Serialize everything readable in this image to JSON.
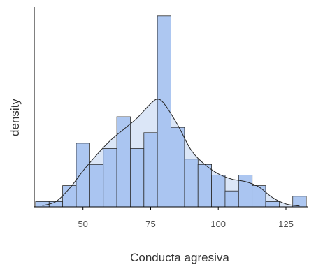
{
  "chart_data": {
    "type": "bar",
    "subtype": "histogram-with-density",
    "title": "",
    "xlabel": "Conducta agresiva",
    "ylabel": "density",
    "xlim": [
      32,
      133
    ],
    "ylim": [
      0,
      0.049
    ],
    "x_ticks": [
      50,
      75,
      100,
      125
    ],
    "y_ticks_shown": false,
    "grid": false,
    "bin_width": 5,
    "bins": [
      {
        "start": 32.5,
        "end": 37.5,
        "density": 0.0013
      },
      {
        "start": 37.5,
        "end": 42.5,
        "density": 0.0013
      },
      {
        "start": 42.5,
        "end": 47.5,
        "density": 0.0052
      },
      {
        "start": 47.5,
        "end": 52.5,
        "density": 0.0156
      },
      {
        "start": 52.5,
        "end": 57.5,
        "density": 0.0104
      },
      {
        "start": 57.5,
        "end": 62.5,
        "density": 0.0143
      },
      {
        "start": 62.5,
        "end": 67.5,
        "density": 0.0221
      },
      {
        "start": 67.5,
        "end": 72.5,
        "density": 0.0143
      },
      {
        "start": 72.5,
        "end": 77.5,
        "density": 0.0182
      },
      {
        "start": 77.5,
        "end": 82.5,
        "density": 0.0468
      },
      {
        "start": 82.5,
        "end": 87.5,
        "density": 0.0195
      },
      {
        "start": 87.5,
        "end": 92.5,
        "density": 0.0117
      },
      {
        "start": 92.5,
        "end": 97.5,
        "density": 0.0104
      },
      {
        "start": 97.5,
        "end": 102.5,
        "density": 0.0078
      },
      {
        "start": 102.5,
        "end": 107.5,
        "density": 0.0039
      },
      {
        "start": 107.5,
        "end": 112.5,
        "density": 0.0078
      },
      {
        "start": 112.5,
        "end": 117.5,
        "density": 0.0052
      },
      {
        "start": 117.5,
        "end": 122.5,
        "density": 0.0013
      },
      {
        "start": 127.5,
        "end": 132.5,
        "density": 0.0026
      }
    ],
    "density_curve": {
      "x": [
        35,
        40,
        45,
        50,
        55,
        60,
        65,
        70,
        75,
        77.5,
        80,
        85,
        90,
        95,
        100,
        105,
        110,
        115,
        120,
        125,
        130
      ],
      "y": [
        0.0003,
        0.0013,
        0.0045,
        0.0088,
        0.0127,
        0.0162,
        0.019,
        0.0218,
        0.0253,
        0.0264,
        0.0253,
        0.0201,
        0.0139,
        0.0104,
        0.0081,
        0.0068,
        0.0062,
        0.0049,
        0.0023,
        0.0007,
        0.0002
      ]
    },
    "colors": {
      "bar_fill": "#a4c1ef",
      "bar_stroke": "#2b2b2b",
      "density_fill": "#dbe6f7",
      "density_line": "#262626",
      "axis": "#000000"
    }
  }
}
